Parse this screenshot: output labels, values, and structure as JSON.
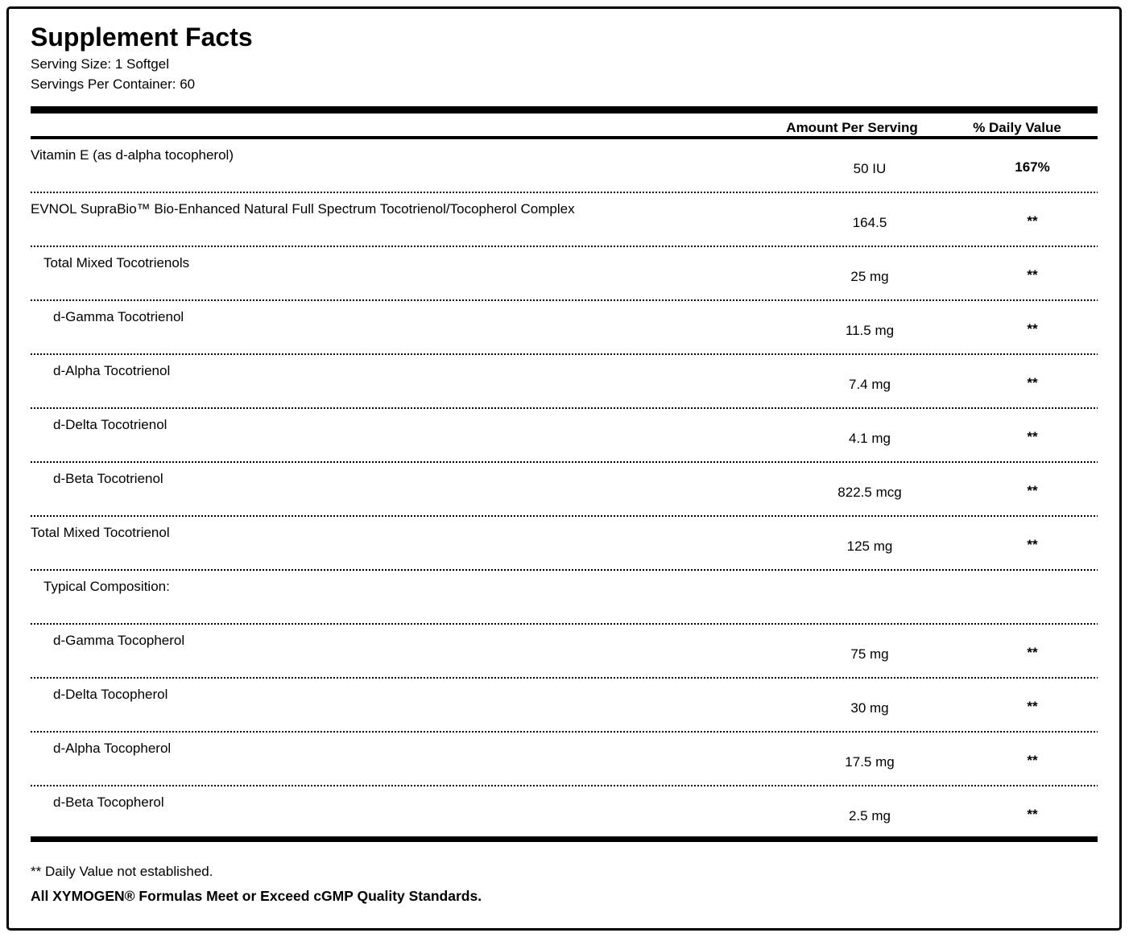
{
  "label": {
    "title": "Supplement Facts",
    "serving_size": "Serving Size: 1 Softgel",
    "servings_per_container": "Servings Per Container: 60",
    "columns": {
      "amount": "Amount Per Serving",
      "daily_value": "% Daily Value"
    },
    "rows": [
      {
        "name": "Vitamin E (as d-alpha tocopherol)",
        "amount": "50 IU",
        "daily_value": "167%"
      },
      {
        "name": "EVNOL SupraBio™ Bio-Enhanced Natural Full Spectrum Tocotrienol/Tocopherol Complex",
        "amount": "164.5",
        "daily_value": "**"
      },
      {
        "name": "Total Mixed Tocotrienols",
        "amount": "25 mg",
        "daily_value": "**"
      },
      {
        "name": "d-Gamma Tocotrienol",
        "amount": "11.5 mg",
        "daily_value": "**"
      },
      {
        "name": "d-Alpha Tocotrienol",
        "amount": "7.4 mg",
        "daily_value": "**"
      },
      {
        "name": "d-Delta Tocotrienol",
        "amount": "4.1 mg",
        "daily_value": "**"
      },
      {
        "name": "d-Beta Tocotrienol",
        "amount": "822.5 mcg",
        "daily_value": "**"
      },
      {
        "name": "Total Mixed Tocotrienol",
        "amount": "125 mg",
        "daily_value": "**"
      },
      {
        "name": "Typical Composition:",
        "amount": "",
        "daily_value": ""
      },
      {
        "name": "d-Gamma Tocopherol",
        "amount": "75 mg",
        "daily_value": "**"
      },
      {
        "name": "d-Delta Tocopherol",
        "amount": "30 mg",
        "daily_value": "**"
      },
      {
        "name": "d-Alpha Tocopherol",
        "amount": "17.5 mg",
        "daily_value": "**"
      },
      {
        "name": "d-Beta Tocopherol",
        "amount": "2.5 mg",
        "daily_value": "**"
      }
    ],
    "footnotes": {
      "daily_value_note": "** Daily Value not established.",
      "quality_note": "All XYMOGEN® Formulas Meet or Exceed cGMP Quality Standards."
    },
    "colors": {
      "text": "#000000",
      "background": "#ffffff",
      "border": "#000000"
    }
  }
}
